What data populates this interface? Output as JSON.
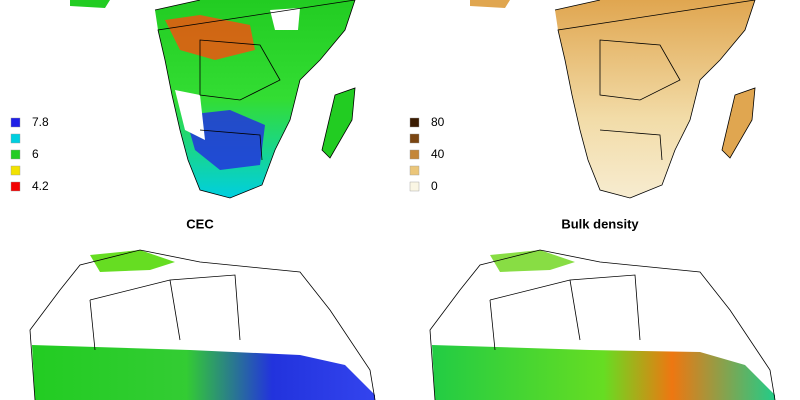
{
  "panels": [
    {
      "title": null,
      "legend": [
        {
          "color": "#1f1fe6",
          "label": "7.8"
        },
        {
          "color": "#00cfe0"
        },
        {
          "color": "#22cc22",
          "label": "6"
        },
        {
          "color": "#f2e200"
        },
        {
          "color": "#f20000",
          "label": "4.2"
        }
      ]
    },
    {
      "title": null,
      "legend": [
        {
          "color": "#3b1c02",
          "label": "80"
        },
        {
          "color": "#7a4512"
        },
        {
          "color": "#c4873a",
          "label": "40"
        },
        {
          "color": "#ebc67a"
        },
        {
          "color": "#faf6e4",
          "label": "0"
        }
      ]
    },
    {
      "title": "CEC"
    },
    {
      "title": "Bulk density"
    }
  ]
}
